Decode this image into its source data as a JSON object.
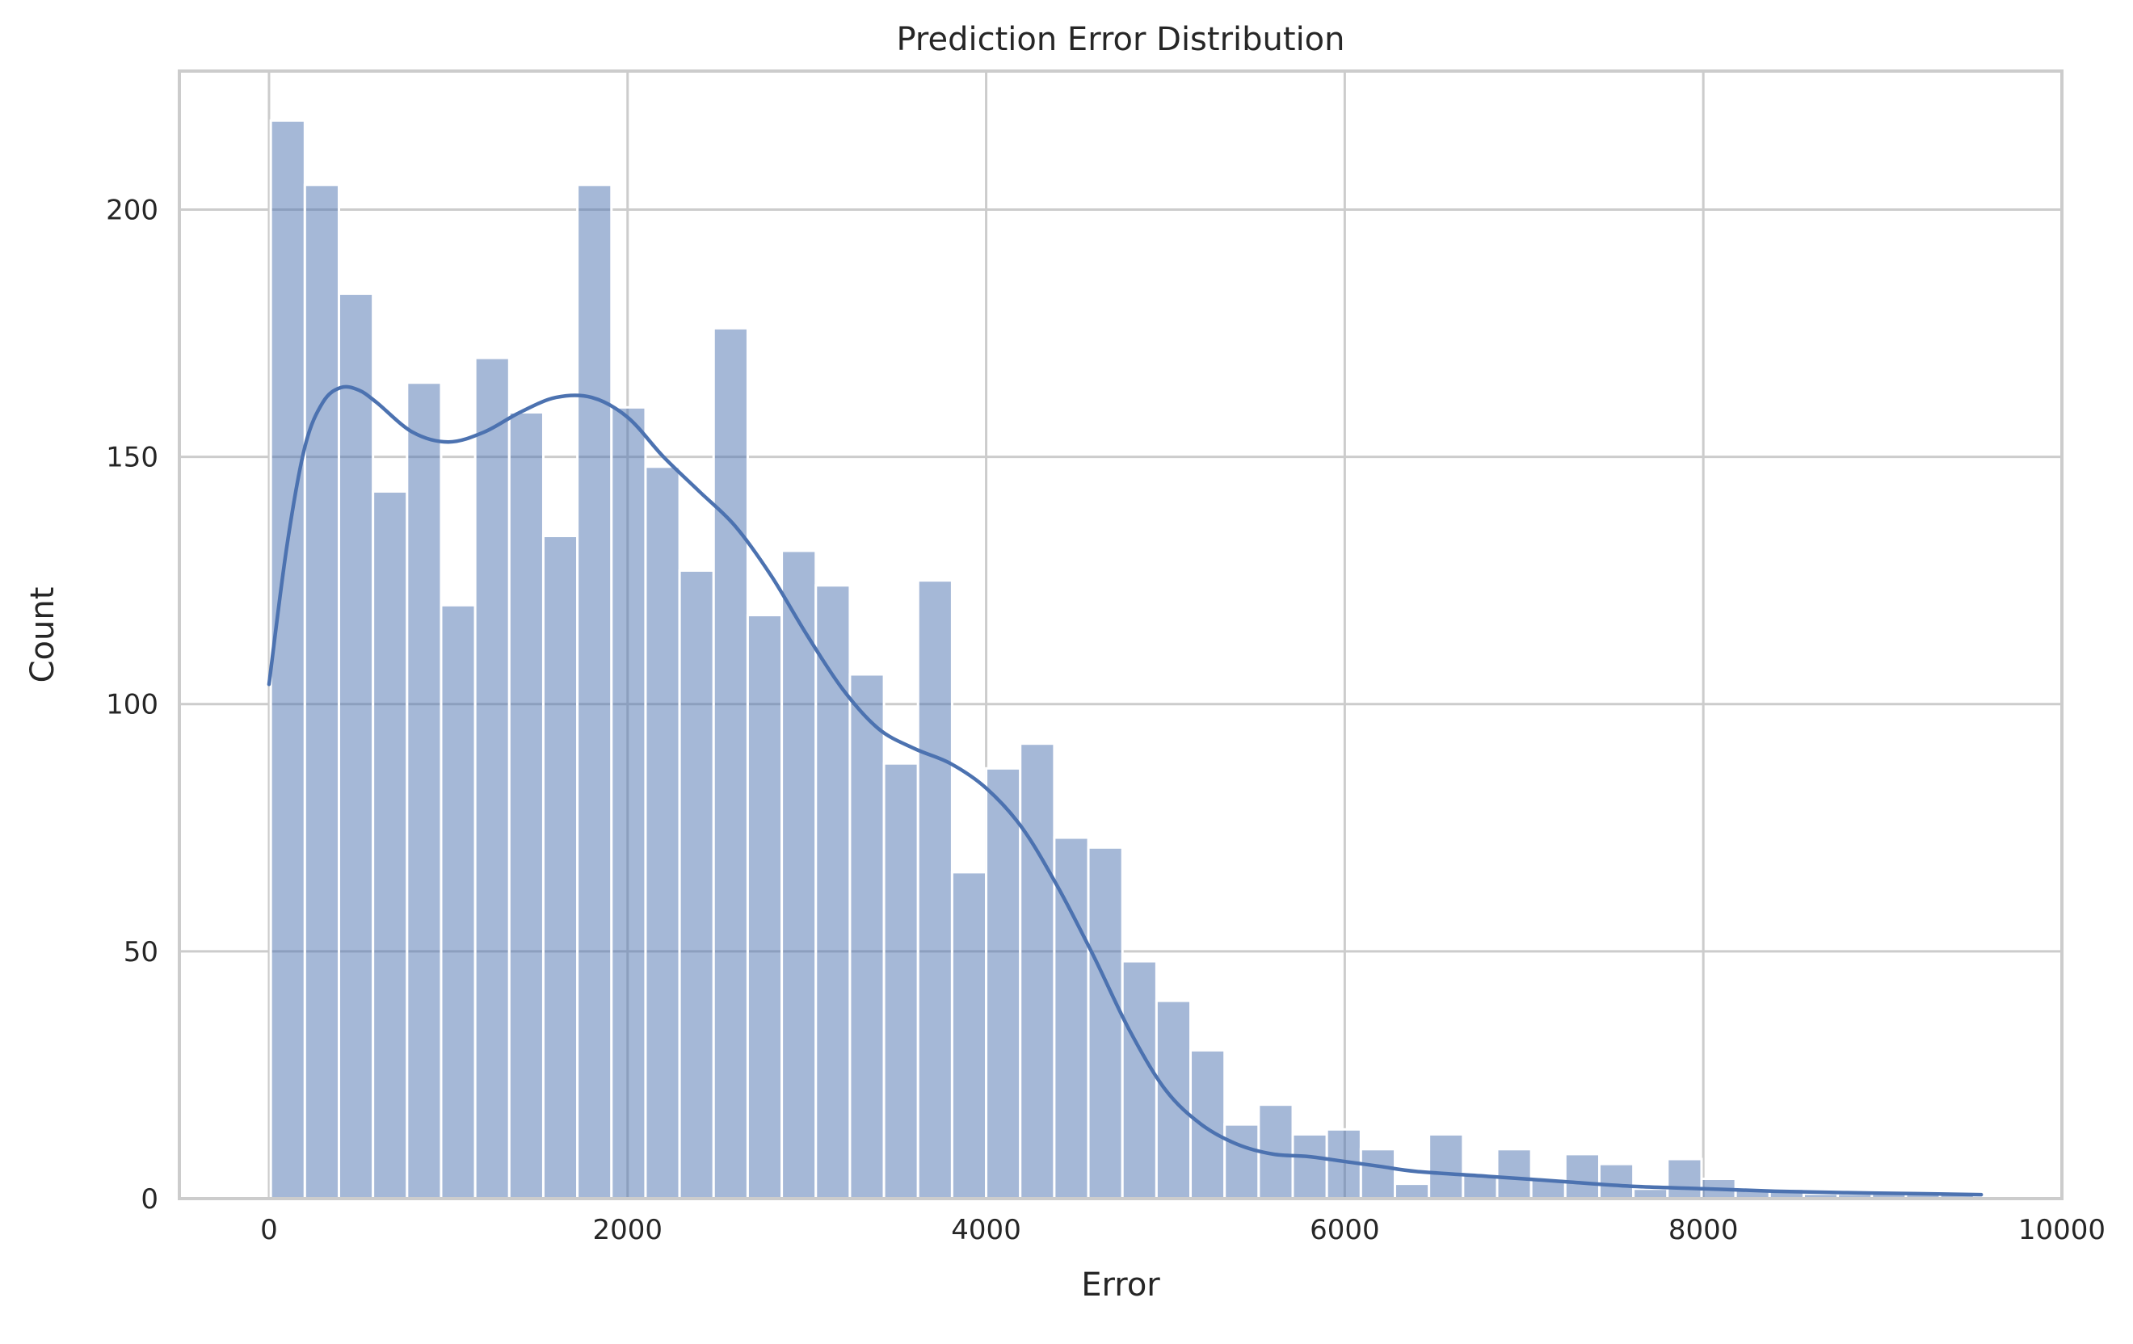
{
  "chart_data": {
    "type": "bar",
    "subtype": "histogram",
    "title": "Prediction Error Distribution",
    "xlabel": "Error",
    "ylabel": "Count",
    "xlim": [
      -500,
      10000
    ],
    "ylim": [
      0,
      228
    ],
    "xticks": [
      0,
      2000,
      4000,
      6000,
      8000,
      10000
    ],
    "yticks": [
      0,
      50,
      100,
      150,
      200
    ],
    "grid": true,
    "bar_color": "#4c72b0",
    "line_color": "#4c72b0",
    "bins": {
      "start": 10,
      "width": 190,
      "counts": [
        218,
        205,
        183,
        143,
        165,
        120,
        170,
        159,
        134,
        205,
        160,
        148,
        127,
        176,
        118,
        131,
        124,
        106,
        88,
        125,
        66,
        87,
        92,
        73,
        71,
        48,
        40,
        30,
        15,
        19,
        13,
        14,
        10,
        3,
        13,
        5,
        10,
        4,
        9,
        7,
        2,
        8,
        4,
        2,
        2,
        1,
        1,
        1,
        1,
        1
      ]
    },
    "kde": {
      "x": [
        0,
        100,
        200,
        300,
        400,
        500,
        600,
        800,
        1000,
        1200,
        1400,
        1600,
        1800,
        2000,
        2200,
        2400,
        2600,
        2800,
        3000,
        3200,
        3400,
        3600,
        3800,
        4000,
        4200,
        4400,
        4600,
        4800,
        5000,
        5200,
        5400,
        5600,
        5800,
        6000,
        6200,
        6400,
        6800,
        7200,
        7600,
        8000,
        8400,
        8800,
        9200,
        9550
      ],
      "y": [
        104,
        132,
        152,
        161,
        164,
        163.5,
        161,
        155,
        153,
        155,
        159,
        162,
        162,
        158,
        150,
        143,
        136,
        126,
        114,
        103,
        95,
        91,
        88,
        83,
        75,
        63,
        49,
        34,
        22,
        15,
        11,
        9,
        8.5,
        7.5,
        6.5,
        5.5,
        4.5,
        3.5,
        2.5,
        2,
        1.5,
        1.2,
        1,
        0.8
      ]
    }
  }
}
